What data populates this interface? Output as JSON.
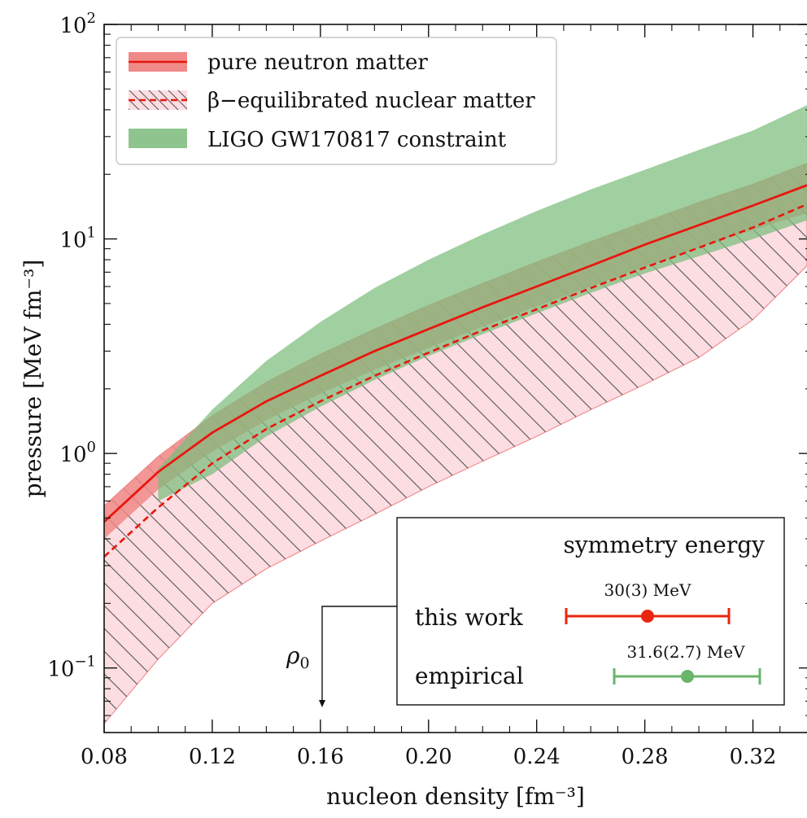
{
  "chart_data": {
    "type": "area",
    "xlabel": "nucleon density [fm⁻³]",
    "ylabel": "pressure [MeV fm⁻³]",
    "xlim": [
      0.08,
      0.34
    ],
    "ylim": [
      0.05,
      100
    ],
    "yscale": "log",
    "x_ticks": [
      0.08,
      0.12,
      0.16,
      0.2,
      0.24,
      0.28,
      0.32
    ],
    "x_tick_labels": [
      "0.08",
      "0.12",
      "0.16",
      "0.20",
      "0.24",
      "0.28",
      "0.32"
    ],
    "y_ticks": [
      0.1,
      1,
      10,
      100
    ],
    "y_tick_labels": [
      {
        "base": "10",
        "exp": "−1"
      },
      {
        "base": "10",
        "exp": "0"
      },
      {
        "base": "10",
        "exp": "1"
      },
      {
        "base": "10",
        "exp": "2"
      }
    ],
    "legend_position": "top-left",
    "series": [
      {
        "name": "pure neutron matter",
        "style": "solid-line-with-band",
        "color": "#e8170e",
        "band_color": "#f08a88",
        "x": [
          0.08,
          0.1,
          0.12,
          0.14,
          0.16,
          0.18,
          0.2,
          0.22,
          0.24,
          0.26,
          0.28,
          0.3,
          0.32,
          0.34
        ],
        "y": [
          0.48,
          0.82,
          1.25,
          1.75,
          2.3,
          3.0,
          3.8,
          4.8,
          6.0,
          7.5,
          9.4,
          11.6,
          14.3,
          17.8
        ],
        "lower": [
          0.4,
          0.68,
          1.02,
          1.43,
          1.9,
          2.45,
          3.1,
          3.9,
          4.85,
          6.0,
          7.4,
          9.1,
          11.0,
          13.2
        ],
        "upper": [
          0.57,
          0.97,
          1.5,
          2.15,
          2.9,
          3.8,
          4.9,
          6.2,
          7.8,
          9.7,
          12.0,
          14.8,
          18.0,
          22.5
        ]
      },
      {
        "name": "β−equilibrated nuclear matter",
        "style": "dashed-line-with-hatched-band",
        "color": "#e8170e",
        "band_color": "#fcdde1",
        "x": [
          0.08,
          0.1,
          0.12,
          0.14,
          0.16,
          0.18,
          0.2,
          0.22,
          0.24,
          0.26,
          0.28,
          0.3,
          0.32,
          0.34
        ],
        "y": [
          0.33,
          0.56,
          0.9,
          1.3,
          1.75,
          2.3,
          2.95,
          3.75,
          4.7,
          5.9,
          7.35,
          9.1,
          11.3,
          14.5
        ],
        "lower": [
          0.055,
          0.11,
          0.2,
          0.29,
          0.39,
          0.52,
          0.7,
          0.92,
          1.2,
          1.6,
          2.1,
          2.8,
          4.2,
          7.5
        ],
        "upper": [
          0.57,
          0.97,
          1.5,
          2.15,
          2.9,
          3.8,
          4.9,
          6.2,
          7.8,
          9.7,
          12.0,
          14.8,
          18.0,
          22.5
        ]
      },
      {
        "name": "LIGO GW170817 constraint",
        "style": "band",
        "color": "#7cbd7c",
        "x": [
          0.1,
          0.12,
          0.14,
          0.16,
          0.18,
          0.2,
          0.22,
          0.24,
          0.26,
          0.28,
          0.3,
          0.32,
          0.34
        ],
        "lower": [
          0.6,
          0.8,
          1.2,
          1.65,
          2.2,
          2.85,
          3.6,
          4.5,
          5.6,
          6.9,
          8.3,
          10.0,
          12.2
        ],
        "upper": [
          0.85,
          1.6,
          2.7,
          4.1,
          5.9,
          8.0,
          10.5,
          13.5,
          17.0,
          21.0,
          26.0,
          32.0,
          42.0
        ]
      }
    ],
    "annotations": [
      {
        "text_base": "ρ",
        "text_sub": "0",
        "x": 0.16
      }
    ]
  },
  "inset": {
    "title": "symmetry energy",
    "rows": [
      {
        "label": "this work",
        "value_label": "30(3) MeV",
        "value": 30,
        "err": 3,
        "color": "#e8270e"
      },
      {
        "label": "empirical",
        "value_label": "31.6(2.7) MeV",
        "value": 31.6,
        "err": 2.7,
        "color": "#6ab46c"
      }
    ]
  }
}
